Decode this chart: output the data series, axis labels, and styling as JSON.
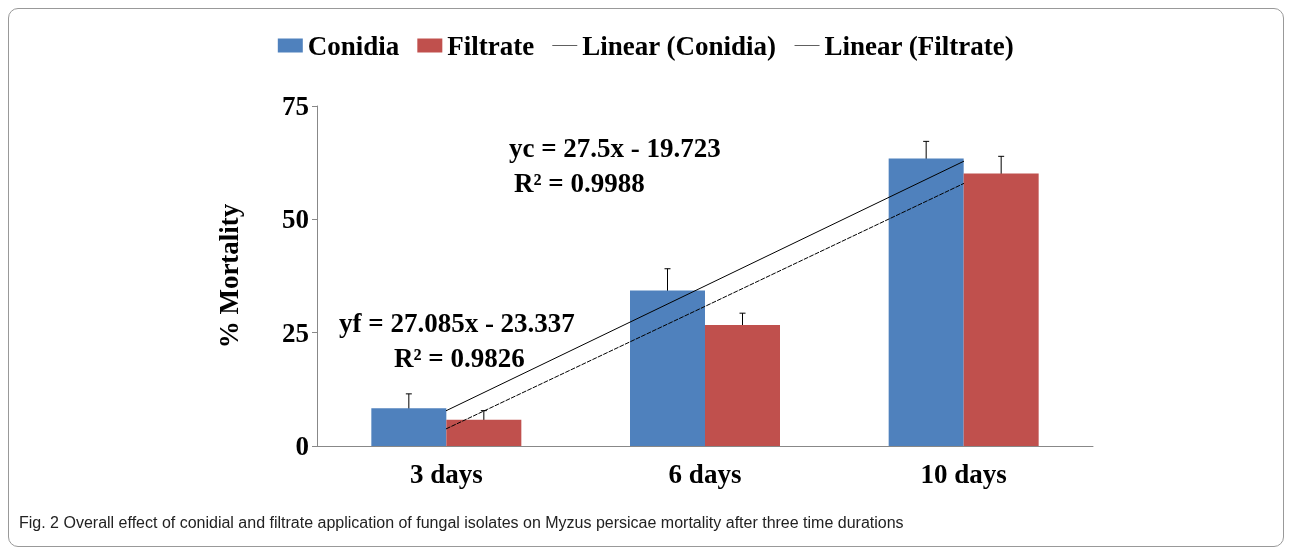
{
  "chart_data": {
    "type": "bar",
    "ylabel": "% Mortality",
    "categories": [
      "3 days",
      "6 days",
      "10 days"
    ],
    "series": [
      {
        "name": "Conidia",
        "color": "#4f81bd",
        "values": [
          8.3,
          34.3,
          63.4
        ],
        "errors": [
          3.2,
          4.8,
          3.8
        ]
      },
      {
        "name": "Filtrate",
        "color": "#c0504d",
        "values": [
          5.8,
          26.7,
          60.1
        ],
        "errors": [
          2.0,
          2.6,
          3.8
        ]
      },
      {
        "name": "Linear (Conidia)",
        "type": "line",
        "color": "#000000",
        "line_style": "solid",
        "x": [
          "3 days",
          "6 days",
          "10 days"
        ],
        "values": [
          7.8,
          35.3,
          62.8
        ]
      },
      {
        "name": "Linear (Filtrate)",
        "type": "line",
        "color": "#000000",
        "line_style": "dashed",
        "x": [
          "3 days",
          "6 days",
          "10 days"
        ],
        "values": [
          3.8,
          30.8,
          57.9
        ]
      }
    ],
    "ylim": [
      0,
      75
    ],
    "yticks": [
      0,
      25,
      50,
      75
    ],
    "grid": false,
    "legend": "top",
    "marker": "none",
    "annotations": [
      "yc = 27.5x - 19.723",
      "R² = 0.9988",
      "yf = 27.085x - 23.337",
      "R² = 0.9826",
      "Fig. 2 Overall effect of conidial and filtrate application of fungal isolates on Myzus persicae mortality after three time durations"
    ]
  }
}
